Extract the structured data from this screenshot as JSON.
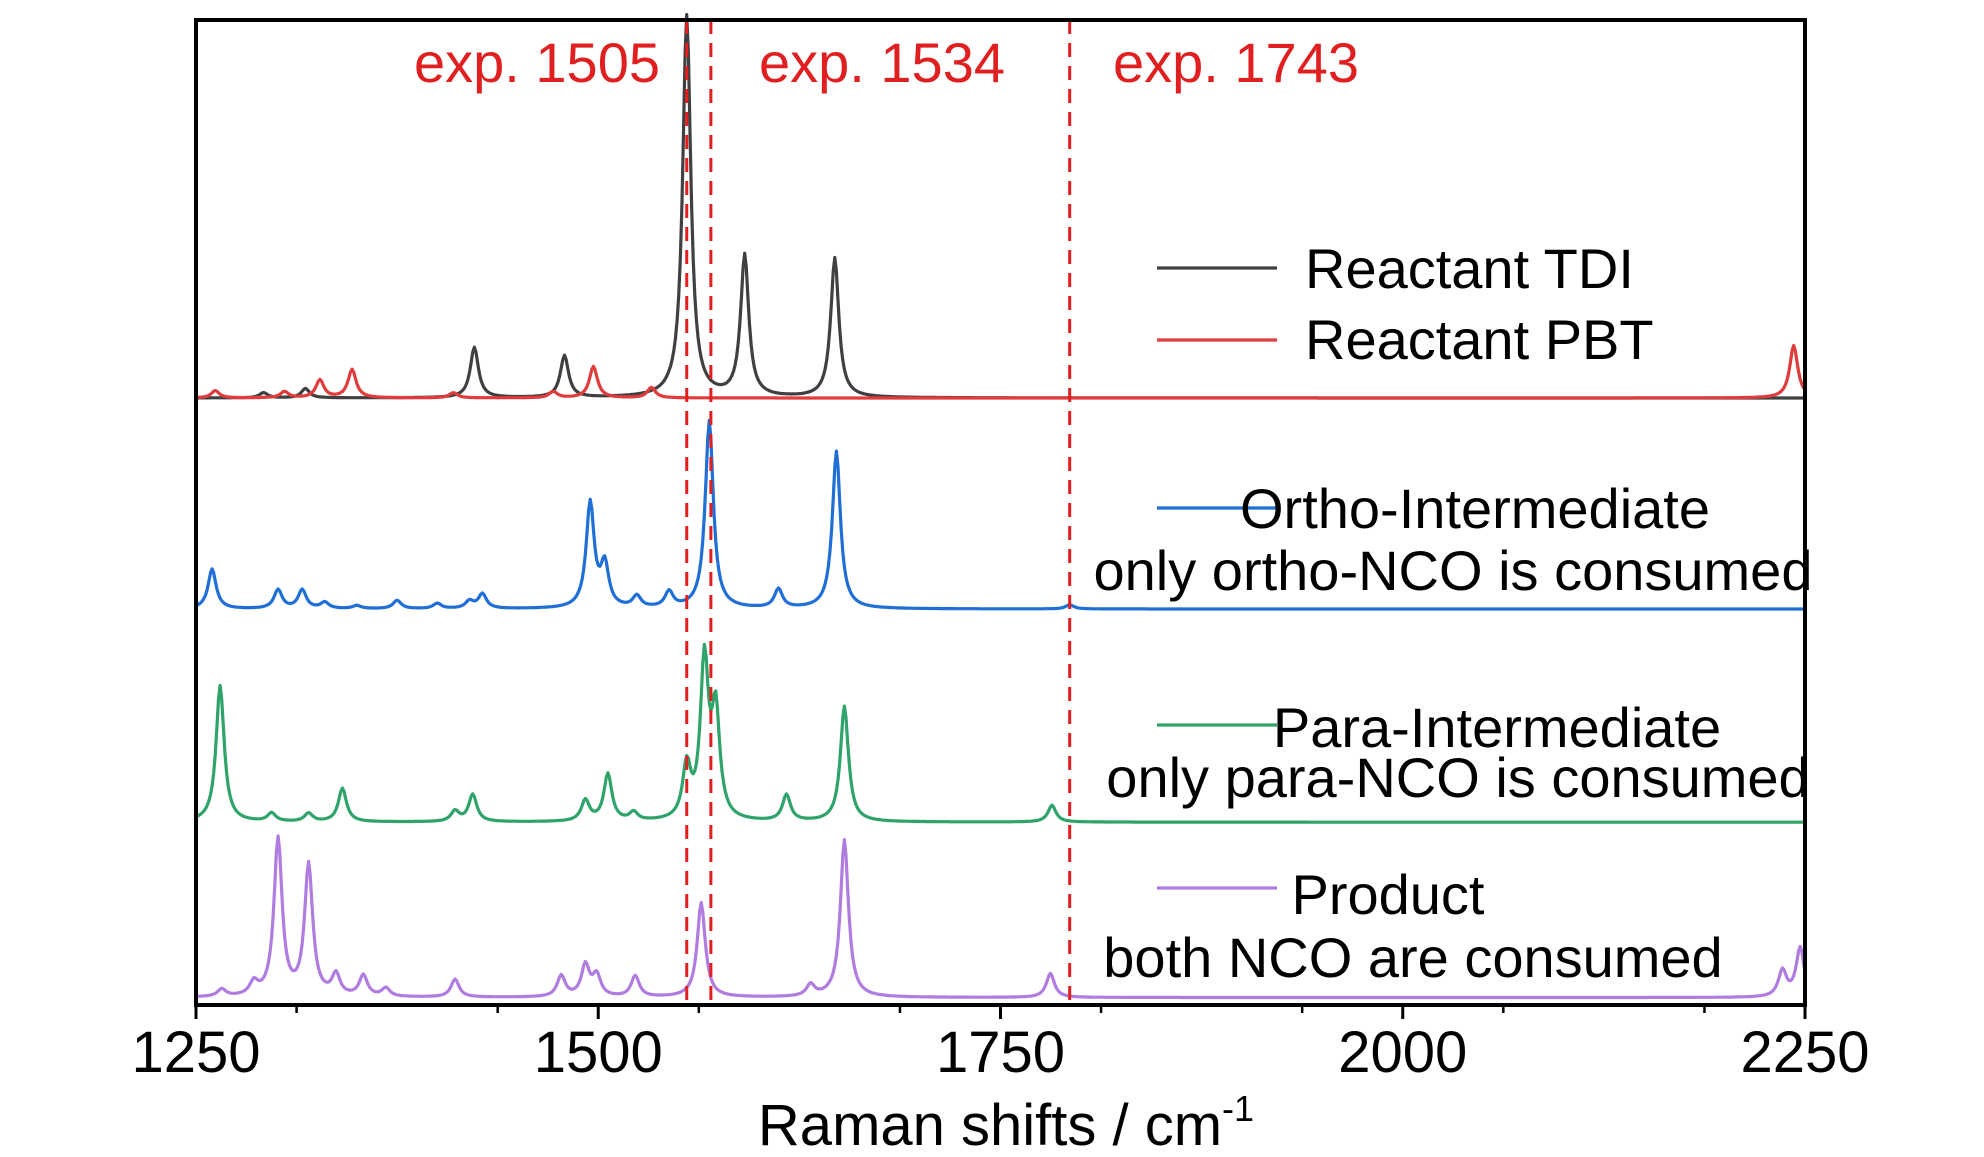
{
  "chart_data": {
    "type": "line",
    "title": "",
    "xlabel": "Raman shifts / cm",
    "xlabel_sup": "-1",
    "xlim": [
      1250,
      2250
    ],
    "xticks": [
      1250,
      1500,
      1750,
      2000,
      2250
    ],
    "ylabel": "",
    "y_ticks_shown": false,
    "grid": false,
    "reference_lines": [
      {
        "x": 1555,
        "label": "exp. 1505",
        "color": "#e02020"
      },
      {
        "x": 1570,
        "label": "exp. 1534",
        "color": "#e02020"
      },
      {
        "x": 1793,
        "label": "exp. 1743",
        "color": "#e02020"
      }
    ],
    "legend": [
      {
        "series": "tdi",
        "label": "Reactant  TDI"
      },
      {
        "series": "pbt",
        "label": "Reactant  PBT"
      },
      {
        "series": "ortho",
        "label": "Ortho-Intermediate",
        "sub": "only ortho-NCO is consumed"
      },
      {
        "series": "para",
        "label": "Para-Intermediate",
        "sub": "only para-NCO is consumed"
      },
      {
        "series": "product",
        "label": "Product",
        "sub": "both NCO are consumed"
      }
    ],
    "series": [
      {
        "id": "tdi",
        "color": "#404040",
        "baseline": 0,
        "width": 6,
        "peaks": [
          [
            1555,
            36.4
          ],
          [
            1591,
            13.5
          ],
          [
            1647,
            13.3
          ],
          [
            1423,
            4.8
          ],
          [
            1479,
            4.0
          ],
          [
            1318,
            0.9
          ],
          [
            1292,
            0.5
          ]
        ]
      },
      {
        "id": "pbt",
        "color": "#e03c3c",
        "baseline": 0,
        "width": 6,
        "peaks": [
          [
            1347,
            2.7
          ],
          [
            1327,
            1.7
          ],
          [
            1497,
            3.0
          ],
          [
            1533,
            1.0
          ],
          [
            2243,
            5.0
          ],
          [
            1262,
            0.7
          ],
          [
            1305,
            0.6
          ],
          [
            1410,
            0.5
          ],
          [
            1472,
            0.6
          ]
        ]
      },
      {
        "id": "ortho",
        "color": "#1f6fd6",
        "baseline": -20.1,
        "width": 6,
        "peaks": [
          [
            1569,
            17.9
          ],
          [
            1648,
            15.0
          ],
          [
            1495,
            10.0
          ],
          [
            1504,
            4.0
          ],
          [
            1260,
            3.8
          ],
          [
            1301,
            1.8
          ],
          [
            1316,
            1.8
          ],
          [
            1330,
            0.6
          ],
          [
            1375,
            0.8
          ],
          [
            1420,
            0.7
          ],
          [
            1428,
            1.4
          ],
          [
            1524,
            1.1
          ],
          [
            1544,
            1.5
          ],
          [
            1612,
            1.8
          ],
          [
            1793,
            0.4
          ],
          [
            1350,
            0.3
          ],
          [
            1400,
            0.5
          ]
        ]
      },
      {
        "id": "para",
        "color": "#2ea36a",
        "baseline": -40.4,
        "width": 6,
        "peaks": [
          [
            1566,
            15.0
          ],
          [
            1573,
            10.0
          ],
          [
            1653,
            11.0
          ],
          [
            1265,
            13.0
          ],
          [
            1341,
            3.2
          ],
          [
            1422,
            2.6
          ],
          [
            1411,
            1.0
          ],
          [
            1492,
            2.0
          ],
          [
            1506,
            4.5
          ],
          [
            1522,
            0.8
          ],
          [
            1555,
            5.0
          ],
          [
            1617,
            2.5
          ],
          [
            1782,
            1.6
          ],
          [
            1320,
            0.8
          ],
          [
            1297,
            0.8
          ]
        ]
      },
      {
        "id": "product",
        "color": "#b07ce0",
        "baseline": -57.1,
        "width": 6,
        "peaks": [
          [
            1301,
            15.0
          ],
          [
            1320,
            12.5
          ],
          [
            1337,
            2.0
          ],
          [
            1354,
            2.0
          ],
          [
            1368,
            0.8
          ],
          [
            1411,
            1.7
          ],
          [
            1477,
            2.0
          ],
          [
            1492,
            3.0
          ],
          [
            1499,
            2.0
          ],
          [
            1523,
            2.0
          ],
          [
            1564,
            9.0
          ],
          [
            1632,
            1.1
          ],
          [
            1653,
            15.0
          ],
          [
            1781,
            2.3
          ],
          [
            2236,
            2.5
          ],
          [
            2247,
            4.7
          ],
          [
            1266,
            0.7
          ],
          [
            1286,
            1.2
          ]
        ]
      }
    ]
  }
}
